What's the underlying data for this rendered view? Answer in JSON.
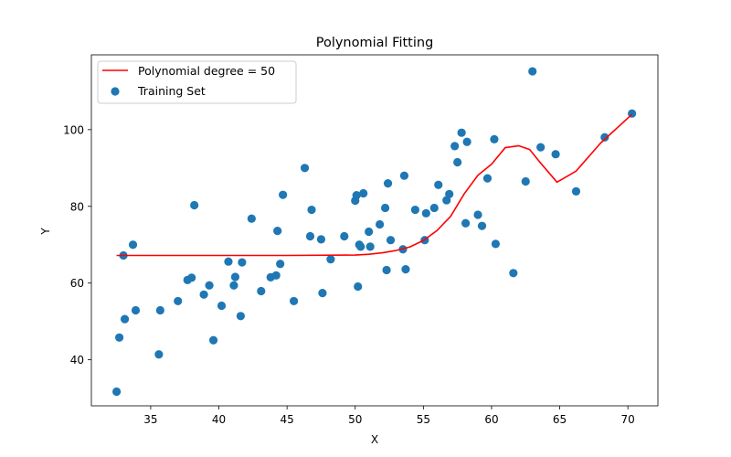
{
  "chart_data": {
    "type": "scatter",
    "title": "Polynomial Fitting",
    "xlabel": "X",
    "ylabel": "Y",
    "xlim": [
      30.65,
      72.2
    ],
    "ylim": [
      28.0,
      119.5
    ],
    "x_ticks": [
      35,
      40,
      45,
      50,
      55,
      60,
      65,
      70
    ],
    "y_ticks": [
      40,
      60,
      80,
      100
    ],
    "grid": false,
    "legend_position": "top-left",
    "series": [
      {
        "name": "Polynomial degree = 50",
        "kind": "line",
        "color": "#ff0000",
        "x": [
          32.5,
          35,
          40,
          45,
          50,
          51,
          52,
          53,
          54,
          55,
          56,
          57,
          58,
          59,
          60,
          61,
          62,
          62.8,
          63.5,
          64.8,
          66.2,
          68,
          70.3
        ],
        "y": [
          67.2,
          67.2,
          67.2,
          67.2,
          67.3,
          67.5,
          67.9,
          68.5,
          69.4,
          71.1,
          73.7,
          77.4,
          83.3,
          88.1,
          91.0,
          95.3,
          95.8,
          94.8,
          91.7,
          86.3,
          89.2,
          96.5,
          104.0
        ]
      },
      {
        "name": "Training Set",
        "kind": "scatter",
        "color": "#1f77b4",
        "x": [
          32.5,
          32.7,
          33.0,
          33.1,
          33.7,
          33.9,
          35.6,
          35.7,
          37.0,
          37.7,
          38.0,
          38.2,
          38.9,
          39.3,
          39.6,
          40.2,
          40.7,
          41.1,
          41.2,
          41.6,
          41.7,
          42.4,
          43.1,
          43.8,
          44.2,
          44.3,
          44.5,
          44.7,
          45.5,
          46.3,
          46.7,
          46.8,
          47.5,
          47.6,
          48.2,
          49.2,
          50.0,
          50.1,
          50.2,
          50.3,
          50.4,
          50.6,
          51.0,
          51.1,
          51.8,
          52.2,
          52.3,
          52.4,
          52.6,
          53.5,
          53.6,
          53.7,
          54.4,
          55.1,
          55.2,
          55.8,
          56.1,
          56.7,
          56.9,
          57.3,
          57.5,
          57.8,
          58.1,
          58.2,
          59.0,
          59.3,
          59.7,
          60.2,
          60.3,
          61.6,
          62.5,
          63.0,
          63.6,
          64.7,
          66.2,
          68.3,
          70.3
        ],
        "y": [
          31.7,
          45.8,
          67.2,
          50.6,
          70.0,
          52.9,
          41.4,
          52.9,
          55.3,
          60.8,
          61.4,
          80.3,
          57.0,
          59.4,
          45.1,
          54.1,
          65.6,
          59.4,
          61.6,
          51.4,
          65.4,
          76.8,
          57.9,
          61.5,
          62.0,
          73.6,
          65.0,
          83.0,
          55.3,
          90.0,
          72.2,
          79.1,
          71.4,
          57.4,
          66.2,
          72.2,
          81.5,
          82.9,
          59.1,
          70.0,
          69.5,
          83.4,
          73.4,
          69.5,
          75.3,
          79.6,
          63.4,
          86.0,
          71.2,
          68.8,
          88.0,
          63.6,
          79.1,
          71.2,
          78.2,
          79.6,
          85.6,
          81.6,
          83.2,
          95.7,
          91.5,
          99.2,
          75.6,
          96.8,
          77.8,
          74.9,
          87.3,
          97.5,
          70.2,
          62.6,
          86.5,
          115.2,
          95.4,
          93.6,
          83.9,
          98.0,
          104.2
        ]
      }
    ]
  }
}
